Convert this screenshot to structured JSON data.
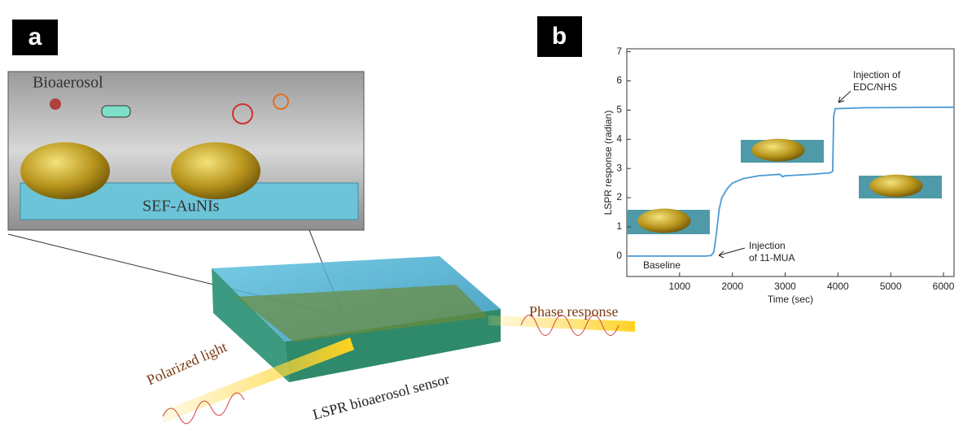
{
  "panels": {
    "a": "a",
    "b": "b"
  },
  "illustration": {
    "inset_top": "Bioaerosol",
    "inset_bottom": "SEF-AuNIs",
    "output": "Phase response",
    "input": "Polarized light",
    "sensor": "LSPR bioaerosol  sensor"
  },
  "chart_data": {
    "type": "line",
    "x_label": "Time (sec)",
    "y_label": "LSPR response (radian)",
    "x": [
      0,
      400,
      800,
      1200,
      1500,
      1600,
      1650,
      1700,
      1750,
      1800,
      1900,
      2000,
      2200,
      2500,
      2900,
      2950,
      3000,
      3500,
      3850,
      3900,
      3920,
      3950,
      4500,
      6200
    ],
    "values": [
      0,
      0,
      0,
      0,
      0,
      0.02,
      0.15,
      0.8,
      1.6,
      2.0,
      2.3,
      2.5,
      2.65,
      2.75,
      2.8,
      2.72,
      2.75,
      2.8,
      2.85,
      2.9,
      4.8,
      5.05,
      5.08,
      5.1
    ],
    "color": "#4a9ad6",
    "xlim": [
      0,
      6200
    ],
    "ylim": [
      -0.7,
      7.1
    ],
    "xticks": [
      1000,
      2000,
      3000,
      4000,
      5000,
      6000
    ],
    "yticks": [
      0,
      1,
      2,
      3,
      4,
      5,
      6,
      7
    ],
    "annotations": [
      {
        "lines": [
          "Injection of",
          "EDC/NHS"
        ]
      },
      {
        "lines": [
          "Injection",
          "of 11-MUA"
        ]
      },
      {
        "lines": [
          "Baseline"
        ]
      }
    ]
  }
}
